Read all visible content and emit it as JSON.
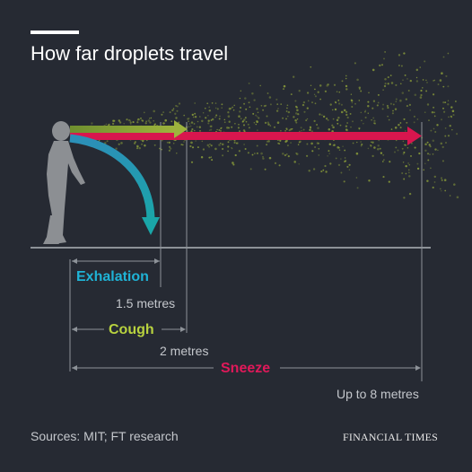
{
  "title": "How far droplets travel",
  "labels": {
    "exhalation": "Exhalation",
    "exhalation_distance": "1.5 metres",
    "cough": "Cough",
    "cough_distance": "2 metres",
    "sneeze": "Sneeze",
    "sneeze_distance": "Up to 8 metres"
  },
  "footer": {
    "sources": "Sources: MIT; FT research",
    "brand": "FINANCIAL TIMES"
  },
  "colors": {
    "background": "#262a33",
    "exhalation": "#1fb3d6",
    "cough": "#8fa93a",
    "sneeze": "#d8164e",
    "figure": "#8c8f93",
    "guide": "#9aa0a6",
    "droplets": "#8fa23a"
  }
}
